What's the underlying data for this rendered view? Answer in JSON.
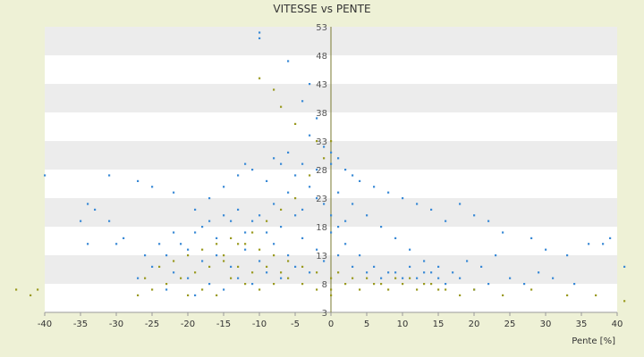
{
  "chart_data": {
    "type": "scatter",
    "title": "VITESSE vs PENTE",
    "xlabel": "Pente [%]",
    "ylabel": "",
    "xlim": [
      -40,
      40
    ],
    "ylim": [
      3,
      53
    ],
    "x_ticks": [
      "-40",
      "-35",
      "-30",
      "-25",
      "-20",
      "-15",
      "-10",
      "-5",
      "0",
      "5",
      "10",
      "15",
      "20",
      "25",
      "30",
      "35",
      "40"
    ],
    "y_ticks": [
      "3",
      "8",
      "13",
      "18",
      "23",
      "28",
      "33",
      "38",
      "43",
      "48",
      "53"
    ],
    "grid": true,
    "legend": "none",
    "colors": {
      "series_a": "#3a8ad6",
      "series_b": "#9a9a20",
      "band_dark": "#ececec",
      "band_light": "#ffffff",
      "axis": "#7a7a30"
    },
    "series": [
      {
        "color": "#3a8ad6",
        "points": [
          [
            -10,
            52
          ],
          [
            -10,
            51
          ],
          [
            -6,
            47
          ],
          [
            -3,
            43
          ],
          [
            -4,
            40
          ],
          [
            -2,
            37
          ],
          [
            -3,
            34
          ],
          [
            -1,
            32
          ],
          [
            0,
            31
          ],
          [
            1,
            30
          ],
          [
            -40,
            27
          ],
          [
            -31,
            27
          ],
          [
            -27,
            26
          ],
          [
            -25,
            25
          ],
          [
            -22,
            24
          ],
          [
            -34,
            22
          ],
          [
            -33,
            21
          ],
          [
            -35,
            19
          ],
          [
            -31,
            19
          ],
          [
            -29,
            16
          ],
          [
            -34,
            15
          ],
          [
            -30,
            15
          ],
          [
            -26,
            13
          ],
          [
            -24,
            15
          ],
          [
            -22,
            17
          ],
          [
            -19,
            21
          ],
          [
            -17,
            23
          ],
          [
            -15,
            25
          ],
          [
            -13,
            27
          ],
          [
            -12,
            29
          ],
          [
            -11,
            28
          ],
          [
            -9,
            26
          ],
          [
            -8,
            30
          ],
          [
            -7,
            29
          ],
          [
            -6,
            31
          ],
          [
            -5,
            27
          ],
          [
            -4,
            29
          ],
          [
            -2,
            28
          ],
          [
            0,
            29
          ],
          [
            2,
            28
          ],
          [
            3,
            27
          ],
          [
            4,
            26
          ],
          [
            6,
            25
          ],
          [
            8,
            24
          ],
          [
            10,
            23
          ],
          [
            12,
            22
          ],
          [
            14,
            21
          ],
          [
            16,
            19
          ],
          [
            18,
            22
          ],
          [
            20,
            20
          ],
          [
            22,
            19
          ],
          [
            24,
            17
          ],
          [
            28,
            16
          ],
          [
            30,
            14
          ],
          [
            33,
            13
          ],
          [
            36,
            15
          ],
          [
            38,
            15
          ],
          [
            39,
            16
          ],
          [
            41,
            11
          ],
          [
            -18,
            18
          ],
          [
            -16,
            16
          ],
          [
            -14,
            19
          ],
          [
            -12,
            17
          ],
          [
            -10,
            20
          ],
          [
            -8,
            22
          ],
          [
            -6,
            24
          ],
          [
            -4,
            21
          ],
          [
            -2,
            23
          ],
          [
            1,
            24
          ],
          [
            3,
            22
          ],
          [
            5,
            20
          ],
          [
            7,
            18
          ],
          [
            9,
            16
          ],
          [
            11,
            14
          ],
          [
            13,
            12
          ],
          [
            15,
            11
          ],
          [
            17,
            10
          ],
          [
            19,
            12
          ],
          [
            21,
            11
          ],
          [
            23,
            13
          ],
          [
            -20,
            14
          ],
          [
            -18,
            12
          ],
          [
            -16,
            13
          ],
          [
            -14,
            11
          ],
          [
            -12,
            14
          ],
          [
            -10,
            12
          ],
          [
            -8,
            15
          ],
          [
            -6,
            13
          ],
          [
            -4,
            16
          ],
          [
            -2,
            14
          ],
          [
            0,
            17
          ],
          [
            2,
            15
          ],
          [
            4,
            13
          ],
          [
            6,
            11
          ],
          [
            8,
            10
          ],
          [
            10,
            9
          ],
          [
            12,
            9
          ],
          [
            14,
            10
          ],
          [
            16,
            8
          ],
          [
            18,
            9
          ],
          [
            20,
            7
          ],
          [
            22,
            8
          ],
          [
            25,
            9
          ],
          [
            27,
            8
          ],
          [
            29,
            10
          ],
          [
            31,
            9
          ],
          [
            34,
            8
          ],
          [
            -22,
            10
          ],
          [
            -20,
            9
          ],
          [
            -17,
            8
          ],
          [
            -13,
            9
          ],
          [
            -9,
            10
          ],
          [
            -5,
            11
          ],
          [
            -1,
            12
          ],
          [
            1,
            13
          ],
          [
            3,
            11
          ],
          [
            5,
            10
          ],
          [
            7,
            9
          ],
          [
            9,
            10
          ],
          [
            11,
            11
          ],
          [
            13,
            10
          ],
          [
            15,
            9
          ],
          [
            -25,
            11
          ],
          [
            -27,
            9
          ],
          [
            -23,
            7
          ],
          [
            -19,
            6
          ],
          [
            -15,
            7
          ],
          [
            -11,
            8
          ],
          [
            -7,
            9
          ],
          [
            -3,
            10
          ],
          [
            0,
            20
          ],
          [
            1,
            18
          ],
          [
            2,
            19
          ],
          [
            -1,
            22
          ],
          [
            -3,
            25
          ],
          [
            -5,
            20
          ],
          [
            -7,
            18
          ],
          [
            -9,
            17
          ],
          [
            -11,
            19
          ],
          [
            -13,
            21
          ],
          [
            -15,
            20
          ],
          [
            -17,
            19
          ],
          [
            -19,
            17
          ],
          [
            -21,
            15
          ],
          [
            -23,
            13
          ]
        ]
      },
      {
        "color": "#9a9a20",
        "points": [
          [
            -10,
            44
          ],
          [
            -8,
            42
          ],
          [
            -7,
            39
          ],
          [
            -5,
            36
          ],
          [
            -2,
            33
          ],
          [
            0,
            33
          ],
          [
            -1,
            30
          ],
          [
            -3,
            27
          ],
          [
            -5,
            23
          ],
          [
            -7,
            21
          ],
          [
            -9,
            19
          ],
          [
            -11,
            17
          ],
          [
            -13,
            15
          ],
          [
            -15,
            13
          ],
          [
            -17,
            11
          ],
          [
            -19,
            10
          ],
          [
            -21,
            9
          ],
          [
            -23,
            8
          ],
          [
            -25,
            7
          ],
          [
            -27,
            6
          ],
          [
            -26,
            9
          ],
          [
            -24,
            11
          ],
          [
            -22,
            12
          ],
          [
            -20,
            13
          ],
          [
            -18,
            14
          ],
          [
            -16,
            15
          ],
          [
            -14,
            16
          ],
          [
            -12,
            15
          ],
          [
            -10,
            14
          ],
          [
            -8,
            13
          ],
          [
            -6,
            12
          ],
          [
            -4,
            11
          ],
          [
            -2,
            10
          ],
          [
            0,
            9
          ],
          [
            0,
            7
          ],
          [
            0,
            6
          ],
          [
            2,
            8
          ],
          [
            4,
            7
          ],
          [
            6,
            8
          ],
          [
            8,
            7
          ],
          [
            10,
            8
          ],
          [
            12,
            7
          ],
          [
            14,
            8
          ],
          [
            16,
            7
          ],
          [
            18,
            6
          ],
          [
            20,
            7
          ],
          [
            24,
            6
          ],
          [
            28,
            7
          ],
          [
            33,
            6
          ],
          [
            37,
            6
          ],
          [
            41,
            5
          ],
          [
            -41,
            7
          ],
          [
            -44,
            7
          ],
          [
            -42,
            6
          ],
          [
            -14,
            9
          ],
          [
            -12,
            8
          ],
          [
            -10,
            7
          ],
          [
            -8,
            8
          ],
          [
            -6,
            9
          ],
          [
            -4,
            8
          ],
          [
            -2,
            7
          ],
          [
            1,
            10
          ],
          [
            3,
            9
          ],
          [
            5,
            9
          ],
          [
            7,
            8
          ],
          [
            9,
            9
          ],
          [
            11,
            9
          ],
          [
            13,
            8
          ],
          [
            15,
            7
          ],
          [
            -18,
            7
          ],
          [
            -16,
            6
          ],
          [
            -20,
            6
          ],
          [
            -15,
            12
          ],
          [
            -13,
            11
          ],
          [
            -11,
            10
          ],
          [
            -9,
            11
          ],
          [
            -7,
            10
          ]
        ]
      }
    ]
  }
}
